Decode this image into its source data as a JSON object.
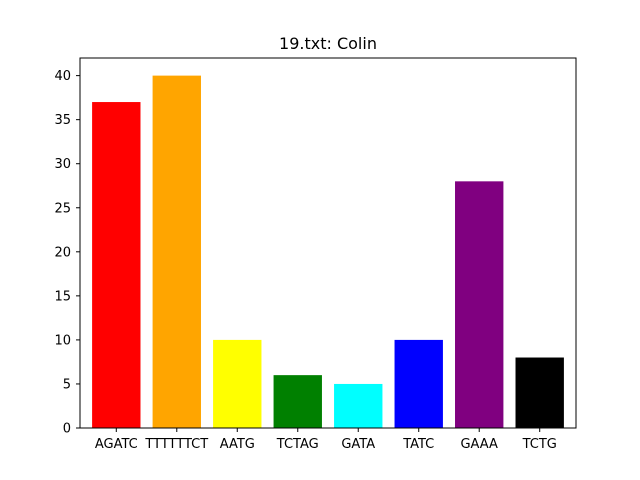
{
  "chart_data": {
    "type": "bar",
    "title": "19.txt: Colin",
    "xlabel": "",
    "ylabel": "",
    "categories": [
      "AGATC",
      "TTTTTTCT",
      "AATG",
      "TCTAG",
      "GATA",
      "TATC",
      "GAAA",
      "TCTG"
    ],
    "values": [
      37,
      40,
      10,
      6,
      5,
      10,
      28,
      8
    ],
    "colors": [
      "#ff0000",
      "#ffa500",
      "#ffff00",
      "#008000",
      "#00ffff",
      "#0000ff",
      "#800080",
      "#000000"
    ],
    "ylim": [
      0,
      42
    ],
    "yticks": [
      "0",
      "5",
      "10",
      "15",
      "20",
      "25",
      "30",
      "35",
      "40"
    ],
    "grid": false,
    "legend": "none"
  }
}
